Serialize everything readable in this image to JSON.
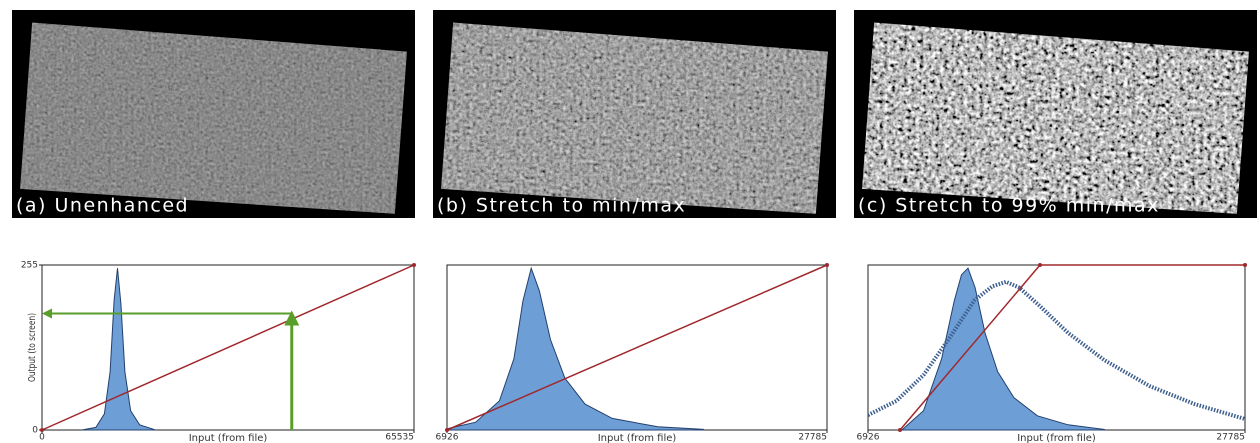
{
  "chart_data": [
    {
      "type": "stretch",
      "title": "(a) Unenhanced",
      "x_label": "Input (from file)",
      "y_label": "Output (to screen)",
      "xlim": [
        0,
        65535
      ],
      "ylim": [
        0,
        255
      ],
      "xticks": [
        0,
        65535
      ],
      "yticks": [
        0,
        255
      ],
      "series": [
        {
          "kind": "area",
          "color": "#6d9fd6",
          "x": [
            7000,
            9500,
            11000,
            12000,
            12700,
            13300,
            13900,
            14600,
            15600,
            17200,
            20000
          ],
          "values": [
            0,
            4,
            25,
            90,
            200,
            250,
            195,
            90,
            30,
            8,
            0
          ]
        },
        {
          "kind": "line",
          "color": "#a0282d",
          "x": [
            0,
            65535
          ],
          "values": [
            0,
            255
          ]
        }
      ],
      "lookup": {
        "color": "#5a9e2a",
        "x": 44000,
        "y": 180
      }
    },
    {
      "type": "stretch",
      "title": "(b) Stretch to min/max",
      "x_label": "Input (from file)",
      "xlim": [
        6926,
        27785
      ],
      "ylim": [
        0,
        255
      ],
      "xticks": [
        6926,
        27785
      ],
      "series": [
        {
          "kind": "area",
          "color": "#6d9fd6",
          "x": [
            6926,
            8500,
            9800,
            10600,
            11100,
            11550,
            12000,
            12600,
            13400,
            14500,
            16000,
            18500,
            21000
          ],
          "values": [
            2,
            12,
            45,
            110,
            200,
            250,
            215,
            140,
            80,
            40,
            18,
            5,
            1
          ]
        },
        {
          "kind": "line",
          "color": "#a0282d",
          "x": [
            6926,
            27785
          ],
          "values": [
            0,
            255
          ]
        }
      ]
    },
    {
      "type": "stretch",
      "title": "(c) Stretch to 99% min/max",
      "x_label": "Input (from file)",
      "xlim": [
        6926,
        27785
      ],
      "ylim": [
        0,
        255
      ],
      "xticks": [
        6926,
        27785
      ],
      "series": [
        {
          "kind": "area",
          "color": "#6d9fd6",
          "x": [
            8800,
            10000,
            11000,
            11700,
            12100,
            12460,
            12850,
            13400,
            14100,
            15000,
            16300,
            18000,
            20000
          ],
          "values": [
            0,
            30,
            110,
            200,
            240,
            250,
            220,
            150,
            90,
            50,
            22,
            8,
            1
          ]
        },
        {
          "kind": "dotted",
          "color": "#3d5f8f",
          "x": [
            6926,
            8500,
            10000,
            11500,
            12800,
            13800,
            14560,
            15300,
            16500,
            18000,
            20000,
            22500,
            25000,
            27785
          ],
          "values": [
            23,
            45,
            85,
            145,
            200,
            222,
            229,
            220,
            190,
            150,
            108,
            68,
            40,
            17
          ]
        },
        {
          "kind": "line",
          "color": "#a0282d",
          "x": [
            8697,
            16443,
            27785
          ],
          "values": [
            0,
            255,
            255
          ]
        }
      ]
    }
  ]
}
